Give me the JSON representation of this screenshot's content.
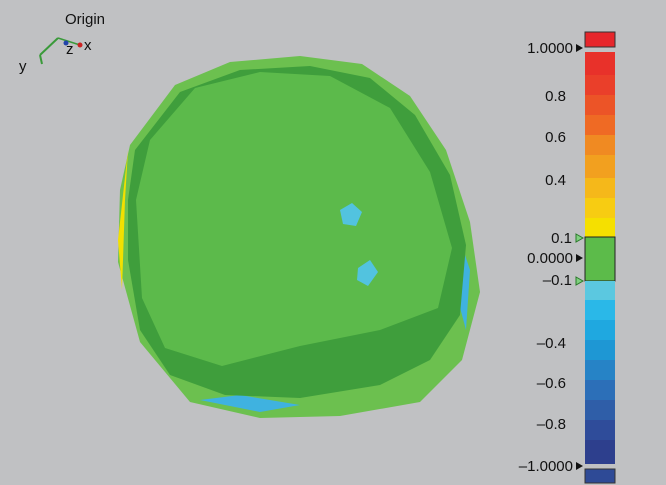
{
  "axes": {
    "origin": "Origin",
    "x": "x",
    "y": "y",
    "z": "z"
  },
  "color_scale": {
    "labels": [
      "1.0000",
      "0.8",
      "0.6",
      "0.4",
      "0.1",
      "0.0000",
      "–0.1",
      "–0.4",
      "–0.6",
      "–0.8",
      "–1.0000"
    ]
  }
}
